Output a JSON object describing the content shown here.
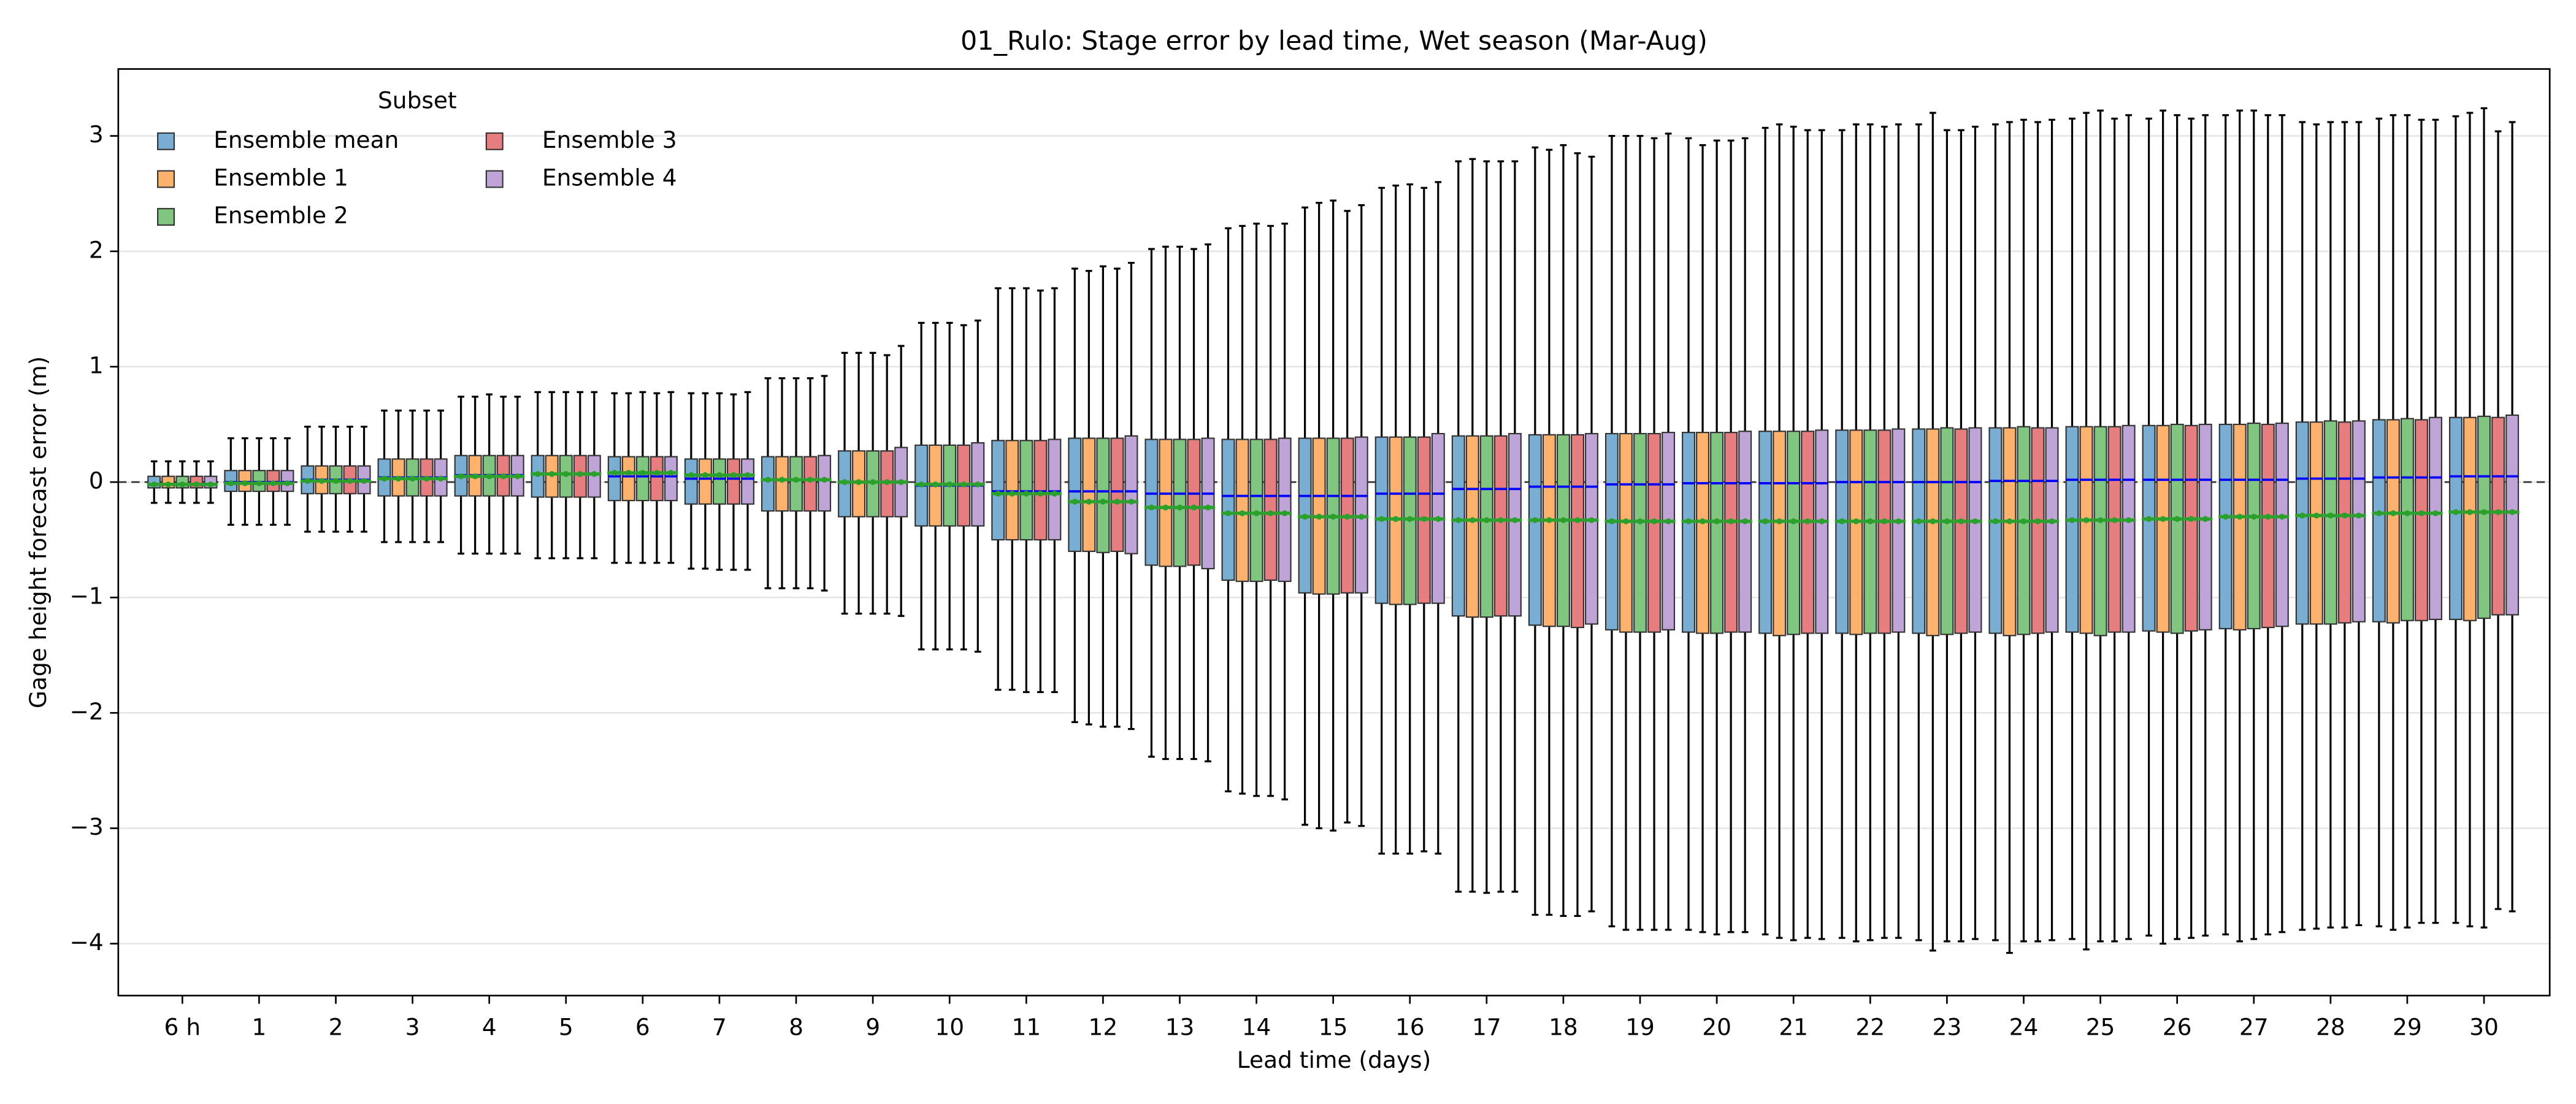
{
  "chart_data": {
    "type": "boxplot",
    "title": "01_Rulo: Stage error by lead time, Wet season (Mar-Aug)",
    "x_label": "Lead time (days)",
    "y_label": "Gage height forecast error (m)",
    "categories": [
      "6 h",
      "1",
      "2",
      "3",
      "4",
      "5",
      "6",
      "7",
      "8",
      "9",
      "10",
      "11",
      "12",
      "13",
      "14",
      "15",
      "16",
      "17",
      "18",
      "19",
      "20",
      "21",
      "22",
      "23",
      "24",
      "25",
      "26",
      "27",
      "28",
      "29",
      "30"
    ],
    "ylim": [
      -4.45,
      3.58
    ],
    "yticks": [
      {
        "value": -4,
        "label": "−4"
      },
      {
        "value": -3,
        "label": "−3"
      },
      {
        "value": -2,
        "label": "−2"
      },
      {
        "value": -1,
        "label": "−1"
      },
      0,
      1,
      2,
      3
    ],
    "grid": true,
    "reference_line": 0,
    "legend_title": "Subset",
    "legend_loc": "upper left",
    "median_color": "#0000ff",
    "mean_color": "#2ca02c",
    "series": [
      {
        "name": "Ensemble mean",
        "color": "#79add2",
        "whislo": [
          -0.18,
          -0.37,
          -0.43,
          -0.52,
          -0.62,
          -0.66,
          -0.7,
          -0.75,
          -0.92,
          -1.14,
          -1.45,
          -1.8,
          -2.08,
          -2.38,
          -2.68,
          -2.97,
          -3.22,
          -3.55,
          -3.75,
          -3.85,
          -3.88,
          -3.92,
          -3.95,
          -3.97,
          -3.97,
          -3.96,
          -3.93,
          -3.92,
          -3.88,
          -3.85,
          -3.82
        ],
        "q1": [
          -0.05,
          -0.08,
          -0.1,
          -0.12,
          -0.12,
          -0.13,
          -0.16,
          -0.19,
          -0.25,
          -0.3,
          -0.38,
          -0.5,
          -0.6,
          -0.72,
          -0.85,
          -0.96,
          -1.05,
          -1.16,
          -1.24,
          -1.28,
          -1.3,
          -1.31,
          -1.31,
          -1.31,
          -1.31,
          -1.3,
          -1.29,
          -1.27,
          -1.23,
          -1.21,
          -1.19
        ],
        "median": [
          -0.02,
          0,
          0.02,
          0.04,
          0.06,
          0.07,
          0.05,
          0.03,
          0.02,
          0,
          -0.03,
          -0.08,
          -0.08,
          -0.1,
          -0.12,
          -0.12,
          -0.1,
          -0.06,
          -0.04,
          -0.02,
          -0.01,
          -0.01,
          0,
          0,
          0.01,
          0.02,
          0.02,
          0.02,
          0.03,
          0.04,
          0.05
        ],
        "q3": [
          0.05,
          0.1,
          0.14,
          0.2,
          0.23,
          0.23,
          0.22,
          0.2,
          0.22,
          0.27,
          0.32,
          0.36,
          0.38,
          0.37,
          0.37,
          0.38,
          0.39,
          0.4,
          0.41,
          0.42,
          0.43,
          0.44,
          0.45,
          0.46,
          0.47,
          0.48,
          0.49,
          0.5,
          0.52,
          0.54,
          0.56
        ],
        "whishi": [
          0.18,
          0.38,
          0.48,
          0.62,
          0.74,
          0.78,
          0.77,
          0.77,
          0.9,
          1.12,
          1.38,
          1.68,
          1.85,
          2.02,
          2.2,
          2.38,
          2.55,
          2.78,
          2.9,
          3.0,
          2.98,
          3.07,
          3.05,
          3.1,
          3.1,
          3.15,
          3.15,
          3.18,
          3.12,
          3.15,
          3.17
        ],
        "mean": [
          -0.02,
          -0.01,
          0.01,
          0.03,
          0.05,
          0.07,
          0.08,
          0.06,
          0.02,
          0,
          -0.02,
          -0.1,
          -0.17,
          -0.22,
          -0.27,
          -0.3,
          -0.32,
          -0.33,
          -0.33,
          -0.34,
          -0.34,
          -0.34,
          -0.34,
          -0.34,
          -0.34,
          -0.33,
          -0.32,
          -0.3,
          -0.29,
          -0.27,
          -0.26
        ]
      },
      {
        "name": "Ensemble 1",
        "color": "#ffb26e",
        "whislo": [
          -0.18,
          -0.37,
          -0.43,
          -0.52,
          -0.62,
          -0.66,
          -0.7,
          -0.75,
          -0.92,
          -1.14,
          -1.45,
          -1.8,
          -2.1,
          -2.4,
          -2.7,
          -3.0,
          -3.22,
          -3.55,
          -3.75,
          -3.88,
          -3.9,
          -3.95,
          -3.98,
          -4.06,
          -4.08,
          -4.05,
          -4.0,
          -3.98,
          -3.87,
          -3.88,
          -3.85
        ],
        "q1": [
          -0.05,
          -0.08,
          -0.1,
          -0.12,
          -0.12,
          -0.13,
          -0.16,
          -0.19,
          -0.25,
          -0.3,
          -0.38,
          -0.5,
          -0.6,
          -0.73,
          -0.86,
          -0.97,
          -1.06,
          -1.17,
          -1.25,
          -1.3,
          -1.31,
          -1.33,
          -1.32,
          -1.33,
          -1.33,
          -1.31,
          -1.3,
          -1.28,
          -1.23,
          -1.22,
          -1.2
        ],
        "median": [
          -0.02,
          0,
          0.02,
          0.04,
          0.06,
          0.07,
          0.05,
          0.03,
          0.02,
          0,
          -0.03,
          -0.08,
          -0.08,
          -0.1,
          -0.12,
          -0.12,
          -0.1,
          -0.06,
          -0.04,
          -0.02,
          -0.01,
          -0.01,
          0,
          0,
          0.01,
          0.02,
          0.02,
          0.02,
          0.03,
          0.04,
          0.05
        ],
        "q3": [
          0.05,
          0.1,
          0.14,
          0.2,
          0.23,
          0.23,
          0.22,
          0.2,
          0.22,
          0.27,
          0.32,
          0.36,
          0.38,
          0.37,
          0.37,
          0.38,
          0.39,
          0.4,
          0.41,
          0.42,
          0.43,
          0.44,
          0.45,
          0.46,
          0.47,
          0.48,
          0.49,
          0.5,
          0.52,
          0.54,
          0.56
        ],
        "whishi": [
          0.18,
          0.38,
          0.48,
          0.62,
          0.74,
          0.78,
          0.77,
          0.77,
          0.9,
          1.12,
          1.38,
          1.68,
          1.83,
          2.04,
          2.22,
          2.42,
          2.57,
          2.8,
          2.88,
          3.0,
          2.92,
          3.1,
          3.1,
          3.2,
          3.12,
          3.2,
          3.22,
          3.22,
          3.1,
          3.18,
          3.2
        ],
        "mean": [
          -0.02,
          -0.01,
          0.01,
          0.03,
          0.05,
          0.07,
          0.08,
          0.06,
          0.02,
          0,
          -0.02,
          -0.1,
          -0.17,
          -0.22,
          -0.27,
          -0.3,
          -0.32,
          -0.33,
          -0.33,
          -0.34,
          -0.34,
          -0.34,
          -0.34,
          -0.34,
          -0.34,
          -0.33,
          -0.32,
          -0.3,
          -0.29,
          -0.27,
          -0.26
        ]
      },
      {
        "name": "Ensemble 2",
        "color": "#80c680",
        "whislo": [
          -0.18,
          -0.37,
          -0.43,
          -0.52,
          -0.62,
          -0.66,
          -0.7,
          -0.76,
          -0.92,
          -1.14,
          -1.45,
          -1.82,
          -2.12,
          -2.4,
          -2.72,
          -3.02,
          -3.22,
          -3.56,
          -3.76,
          -3.88,
          -3.92,
          -3.97,
          -3.97,
          -3.98,
          -3.98,
          -3.98,
          -3.96,
          -3.96,
          -3.86,
          -3.86,
          -3.86
        ],
        "q1": [
          -0.05,
          -0.08,
          -0.1,
          -0.12,
          -0.12,
          -0.13,
          -0.16,
          -0.19,
          -0.25,
          -0.3,
          -0.38,
          -0.5,
          -0.61,
          -0.73,
          -0.86,
          -0.97,
          -1.06,
          -1.17,
          -1.25,
          -1.3,
          -1.31,
          -1.32,
          -1.31,
          -1.32,
          -1.32,
          -1.33,
          -1.31,
          -1.27,
          -1.23,
          -1.2,
          -1.18
        ],
        "median": [
          -0.02,
          0,
          0.02,
          0.04,
          0.06,
          0.07,
          0.05,
          0.03,
          0.02,
          0,
          -0.03,
          -0.08,
          -0.08,
          -0.1,
          -0.12,
          -0.12,
          -0.1,
          -0.06,
          -0.04,
          -0.02,
          -0.01,
          -0.01,
          0,
          0,
          0.01,
          0.02,
          0.02,
          0.02,
          0.03,
          0.04,
          0.05
        ],
        "q3": [
          0.05,
          0.1,
          0.14,
          0.2,
          0.23,
          0.23,
          0.22,
          0.2,
          0.22,
          0.27,
          0.32,
          0.36,
          0.38,
          0.37,
          0.37,
          0.38,
          0.39,
          0.4,
          0.41,
          0.42,
          0.43,
          0.44,
          0.45,
          0.47,
          0.48,
          0.48,
          0.5,
          0.51,
          0.53,
          0.55,
          0.57
        ],
        "whishi": [
          0.18,
          0.38,
          0.48,
          0.62,
          0.76,
          0.78,
          0.78,
          0.77,
          0.9,
          1.12,
          1.38,
          1.68,
          1.87,
          2.04,
          2.24,
          2.44,
          2.58,
          2.78,
          2.92,
          3.0,
          2.96,
          3.08,
          3.1,
          3.05,
          3.14,
          3.22,
          3.18,
          3.22,
          3.12,
          3.18,
          3.24
        ],
        "mean": [
          -0.02,
          -0.01,
          0.01,
          0.03,
          0.05,
          0.07,
          0.08,
          0.06,
          0.02,
          0,
          -0.02,
          -0.1,
          -0.17,
          -0.22,
          -0.27,
          -0.3,
          -0.32,
          -0.33,
          -0.33,
          -0.34,
          -0.34,
          -0.34,
          -0.34,
          -0.34,
          -0.34,
          -0.33,
          -0.32,
          -0.3,
          -0.29,
          -0.27,
          -0.26
        ]
      },
      {
        "name": "Ensemble 3",
        "color": "#e67d7e",
        "whislo": [
          -0.18,
          -0.37,
          -0.43,
          -0.52,
          -0.62,
          -0.66,
          -0.7,
          -0.76,
          -0.92,
          -1.14,
          -1.45,
          -1.82,
          -2.12,
          -2.4,
          -2.72,
          -2.95,
          -3.2,
          -3.55,
          -3.76,
          -3.88,
          -3.9,
          -3.95,
          -3.95,
          -3.98,
          -3.98,
          -3.98,
          -3.95,
          -3.92,
          -3.86,
          -3.82,
          -3.7
        ],
        "q1": [
          -0.05,
          -0.08,
          -0.1,
          -0.12,
          -0.12,
          -0.13,
          -0.16,
          -0.19,
          -0.25,
          -0.3,
          -0.38,
          -0.5,
          -0.6,
          -0.72,
          -0.85,
          -0.96,
          -1.05,
          -1.16,
          -1.26,
          -1.3,
          -1.3,
          -1.31,
          -1.31,
          -1.31,
          -1.31,
          -1.3,
          -1.29,
          -1.26,
          -1.22,
          -1.2,
          -1.15
        ],
        "median": [
          -0.02,
          0,
          0.02,
          0.04,
          0.06,
          0.07,
          0.05,
          0.03,
          0.02,
          0,
          -0.03,
          -0.08,
          -0.08,
          -0.1,
          -0.12,
          -0.12,
          -0.1,
          -0.06,
          -0.04,
          -0.02,
          -0.01,
          -0.01,
          0,
          0,
          0.01,
          0.02,
          0.02,
          0.02,
          0.03,
          0.04,
          0.05
        ],
        "q3": [
          0.05,
          0.1,
          0.14,
          0.2,
          0.23,
          0.23,
          0.22,
          0.2,
          0.22,
          0.27,
          0.32,
          0.36,
          0.38,
          0.37,
          0.37,
          0.38,
          0.39,
          0.4,
          0.41,
          0.42,
          0.43,
          0.44,
          0.45,
          0.46,
          0.47,
          0.48,
          0.49,
          0.5,
          0.52,
          0.54,
          0.56
        ],
        "whishi": [
          0.18,
          0.38,
          0.48,
          0.62,
          0.74,
          0.78,
          0.77,
          0.76,
          0.9,
          1.1,
          1.36,
          1.66,
          1.85,
          2.02,
          2.22,
          2.35,
          2.55,
          2.78,
          2.85,
          2.98,
          2.96,
          3.05,
          3.08,
          3.05,
          3.12,
          3.15,
          3.15,
          3.18,
          3.12,
          3.14,
          3.04
        ],
        "mean": [
          -0.02,
          -0.01,
          0.01,
          0.03,
          0.05,
          0.07,
          0.08,
          0.06,
          0.02,
          0,
          -0.02,
          -0.1,
          -0.17,
          -0.22,
          -0.27,
          -0.3,
          -0.32,
          -0.33,
          -0.33,
          -0.34,
          -0.34,
          -0.34,
          -0.34,
          -0.34,
          -0.34,
          -0.33,
          -0.32,
          -0.3,
          -0.29,
          -0.27,
          -0.26
        ]
      },
      {
        "name": "Ensemble 4",
        "color": "#bfa4d7",
        "whislo": [
          -0.18,
          -0.37,
          -0.43,
          -0.52,
          -0.62,
          -0.66,
          -0.7,
          -0.76,
          -0.94,
          -1.16,
          -1.47,
          -1.82,
          -2.14,
          -2.42,
          -2.75,
          -2.98,
          -3.22,
          -3.55,
          -3.72,
          -3.88,
          -3.9,
          -3.96,
          -3.95,
          -3.96,
          -3.97,
          -3.96,
          -3.93,
          -3.9,
          -3.84,
          -3.82,
          -3.72
        ],
        "q1": [
          -0.05,
          -0.08,
          -0.1,
          -0.12,
          -0.12,
          -0.13,
          -0.16,
          -0.19,
          -0.25,
          -0.3,
          -0.38,
          -0.5,
          -0.62,
          -0.75,
          -0.86,
          -0.96,
          -1.05,
          -1.16,
          -1.23,
          -1.28,
          -1.3,
          -1.31,
          -1.3,
          -1.3,
          -1.3,
          -1.3,
          -1.28,
          -1.25,
          -1.21,
          -1.19,
          -1.15
        ],
        "median": [
          -0.02,
          0,
          0.02,
          0.04,
          0.06,
          0.07,
          0.05,
          0.03,
          0.02,
          0,
          -0.03,
          -0.08,
          -0.08,
          -0.1,
          -0.12,
          -0.12,
          -0.1,
          -0.06,
          -0.04,
          -0.02,
          -0.01,
          -0.01,
          0,
          0,
          0.01,
          0.02,
          0.02,
          0.02,
          0.03,
          0.04,
          0.05
        ],
        "q3": [
          0.05,
          0.1,
          0.14,
          0.2,
          0.23,
          0.23,
          0.22,
          0.2,
          0.23,
          0.3,
          0.34,
          0.37,
          0.4,
          0.38,
          0.38,
          0.39,
          0.42,
          0.42,
          0.42,
          0.43,
          0.44,
          0.45,
          0.46,
          0.47,
          0.47,
          0.49,
          0.5,
          0.51,
          0.53,
          0.56,
          0.58
        ],
        "whishi": [
          0.18,
          0.38,
          0.48,
          0.62,
          0.74,
          0.78,
          0.78,
          0.78,
          0.92,
          1.18,
          1.4,
          1.68,
          1.9,
          2.06,
          2.24,
          2.4,
          2.6,
          2.78,
          2.82,
          3.02,
          2.98,
          3.05,
          3.1,
          3.08,
          3.14,
          3.18,
          3.18,
          3.18,
          3.12,
          3.14,
          3.12
        ],
        "mean": [
          -0.02,
          -0.01,
          0.01,
          0.03,
          0.05,
          0.07,
          0.08,
          0.06,
          0.02,
          0,
          -0.02,
          -0.1,
          -0.17,
          -0.22,
          -0.27,
          -0.3,
          -0.32,
          -0.33,
          -0.33,
          -0.34,
          -0.34,
          -0.34,
          -0.34,
          -0.34,
          -0.34,
          -0.33,
          -0.32,
          -0.3,
          -0.29,
          -0.27,
          -0.26
        ]
      }
    ]
  }
}
